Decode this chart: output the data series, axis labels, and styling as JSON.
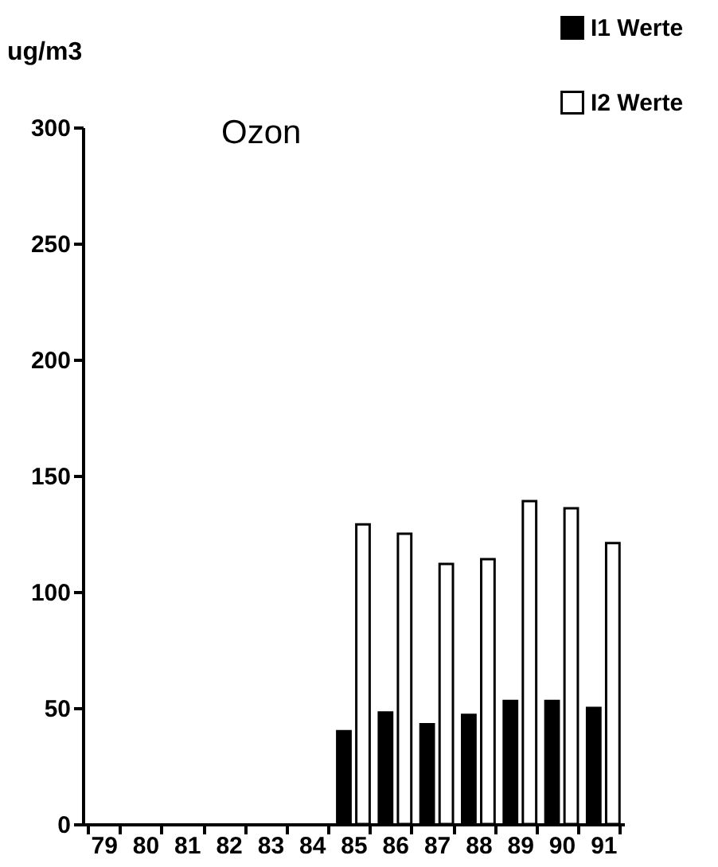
{
  "chart_data": {
    "type": "bar",
    "title": "Ozon",
    "ylabel": "ug/m3",
    "categories": [
      "79",
      "80",
      "81",
      "82",
      "83",
      "84",
      "85",
      "86",
      "87",
      "88",
      "89",
      "90",
      "91"
    ],
    "series": [
      {
        "name": "I1 Werte",
        "color": "#000000",
        "values": [
          null,
          null,
          null,
          null,
          null,
          null,
          40,
          48,
          43,
          47,
          53,
          53,
          50
        ]
      },
      {
        "name": "I2 Werte",
        "color": "#ffffff",
        "values": [
          null,
          null,
          null,
          null,
          null,
          null,
          129,
          125,
          112,
          114,
          139,
          136,
          121
        ]
      }
    ],
    "ylim": [
      0,
      300
    ],
    "yticks": [
      0,
      50,
      100,
      150,
      200,
      250,
      300
    ],
    "grid": false,
    "legend": "top right"
  }
}
